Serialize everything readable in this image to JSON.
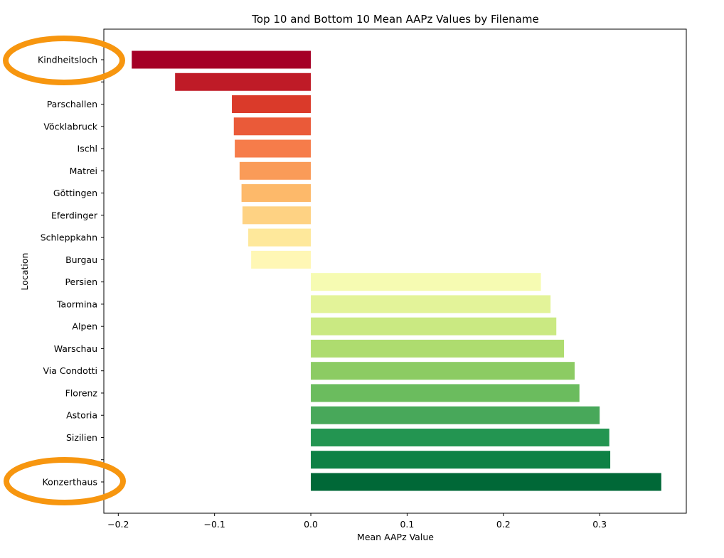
{
  "chart_data": {
    "type": "bar",
    "orientation": "horizontal",
    "title": "Top 10 and Bottom 10 Mean AAPz Values by Filename",
    "xlabel": "Mean AAPz Value",
    "ylabel": "Location",
    "xlim": [
      -0.215,
      0.39
    ],
    "xticks": [
      -0.2,
      -0.1,
      0.0,
      0.1,
      0.2,
      0.3
    ],
    "xtick_labels": [
      "−0.2",
      "−0.1",
      "0.0",
      "0.1",
      "0.2",
      "0.3"
    ],
    "grid": false,
    "categories": [
      "Kindheitsloch",
      "",
      "Parschallen",
      "Vöcklabruck",
      "Ischl",
      "Matrei",
      "Göttingen",
      "Eferdinger",
      "Schleppkahn",
      "Burgau",
      "Persien",
      "Taormina",
      "Alpen",
      "Warschau",
      "Via Condotti",
      "Florenz",
      "Astoria",
      "Sizilien",
      "",
      "Konzerthaus"
    ],
    "values": [
      -0.186,
      -0.141,
      -0.082,
      -0.08,
      -0.079,
      -0.074,
      -0.072,
      -0.071,
      -0.065,
      -0.062,
      0.239,
      0.249,
      0.255,
      0.263,
      0.274,
      0.279,
      0.3,
      0.31,
      0.311,
      0.364
    ],
    "colors": [
      "#a50026",
      "#bf1b27",
      "#da3a2a",
      "#ea5a39",
      "#f67c4a",
      "#fa9b58",
      "#fdb96a",
      "#fed283",
      "#fee89b",
      "#fff7b5",
      "#f6fbb2",
      "#e3f399",
      "#cae982",
      "#aedc6f",
      "#8ccb63",
      "#6bbc5e",
      "#48a85a",
      "#239551",
      "#0e8145",
      "#006837"
    ]
  },
  "annotations": {
    "highlight_color": "#f7960f"
  }
}
